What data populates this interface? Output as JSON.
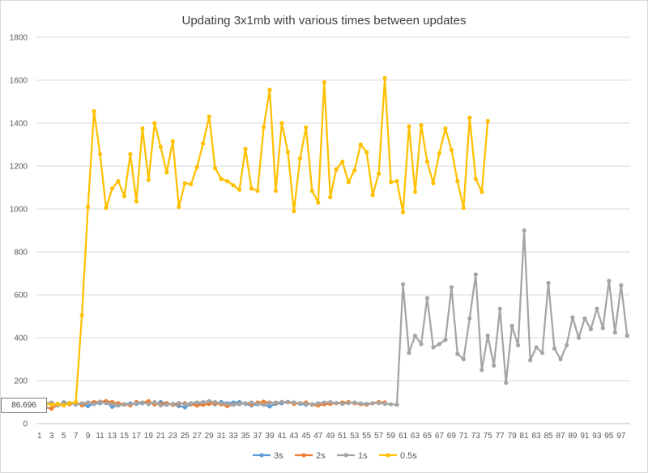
{
  "chart_data": {
    "type": "line",
    "title": "Updating 3x1mb with various times between updates",
    "xlabel": "",
    "ylabel": "",
    "ylim": [
      0,
      1800
    ],
    "yticks": [
      0,
      200,
      400,
      600,
      800,
      1000,
      1200,
      1400,
      1600,
      1800
    ],
    "x_range": [
      1,
      98
    ],
    "xticks": [
      1,
      3,
      5,
      7,
      9,
      11,
      13,
      15,
      17,
      19,
      21,
      23,
      25,
      27,
      29,
      31,
      33,
      35,
      37,
      39,
      41,
      43,
      45,
      47,
      49,
      51,
      53,
      55,
      57,
      59,
      61,
      63,
      65,
      67,
      69,
      71,
      73,
      75,
      77,
      79,
      81,
      83,
      85,
      87,
      89,
      91,
      93,
      95,
      97
    ],
    "grid": "horizontal",
    "legend_position": "bottom",
    "tooltip_value": "86.696",
    "series": [
      {
        "name": "3s",
        "color": "#5b9bd5",
        "values": [
          98,
          90,
          96,
          85,
          90,
          93,
          95,
          88,
          82,
          92,
          95,
          100,
          78,
          85,
          90,
          95,
          92,
          95,
          98,
          90,
          100,
          95,
          88,
          82,
          76,
          90,
          92,
          88,
          95,
          90,
          100,
          95,
          98,
          100,
          92,
          85,
          90,
          88,
          80,
          92,
          95,
          100,
          98,
          92,
          88
        ]
      },
      {
        "name": "2s",
        "color": "#ed7d31",
        "values": [
          98,
          75,
          70,
          88,
          95,
          90,
          100,
          85,
          98,
          100,
          102,
          105,
          100,
          95,
          90,
          85,
          100,
          98,
          104,
          90,
          92,
          95,
          88,
          92,
          95,
          90,
          84,
          88,
          92,
          94,
          90,
          82,
          88,
          92,
          95,
          90,
          98,
          102,
          98,
          95,
          100,
          100,
          92,
          95,
          98,
          88,
          85,
          90,
          92,
          95,
          98,
          100,
          95,
          90,
          88,
          95,
          100,
          98
        ]
      },
      {
        "name": "1s",
        "color": "#a5a5a5",
        "values": [
          100,
          95,
          98,
          85,
          100,
          96,
          88,
          95,
          98,
          92,
          100,
          95,
          90,
          85,
          88,
          92,
          95,
          98,
          90,
          100,
          85,
          88,
          92,
          96,
          90,
          95,
          98,
          100,
          105,
          100,
          95,
          92,
          88,
          90,
          95,
          98,
          92,
          88,
          95,
          98,
          100,
          102,
          98,
          95,
          92,
          90,
          95,
          98,
          100,
          96,
          92,
          95,
          98,
          94,
          92,
          95,
          96,
          92,
          90,
          88,
          650,
          330,
          410,
          370,
          585,
          355,
          370,
          390,
          635,
          325,
          300,
          490,
          695,
          250,
          410,
          270,
          535,
          190,
          455,
          365,
          900,
          295,
          355,
          330,
          655,
          350,
          300,
          365,
          495,
          400,
          490,
          440,
          535,
          445,
          665,
          425,
          645,
          410
        ]
      },
      {
        "name": "0.5s",
        "color": "#ffc000",
        "values": [
          90,
          95,
          88,
          92,
          85,
          95,
          100,
          505,
          1010,
          1455,
          1255,
          1005,
          1095,
          1130,
          1060,
          1255,
          1035,
          1375,
          1135,
          1400,
          1290,
          1170,
          1315,
          1010,
          1120,
          1115,
          1195,
          1305,
          1430,
          1190,
          1140,
          1130,
          1110,
          1090,
          1280,
          1095,
          1085,
          1380,
          1555,
          1085,
          1400,
          1265,
          990,
          1235,
          1380,
          1085,
          1030,
          1590,
          1055,
          1185,
          1220,
          1125,
          1180,
          1300,
          1265,
          1065,
          1165,
          1610,
          1125,
          1130,
          985,
          1385,
          1080,
          1390,
          1220,
          1120,
          1260,
          1375,
          1275,
          1130,
          1005,
          1425,
          1140,
          1080,
          1410
        ]
      }
    ]
  }
}
